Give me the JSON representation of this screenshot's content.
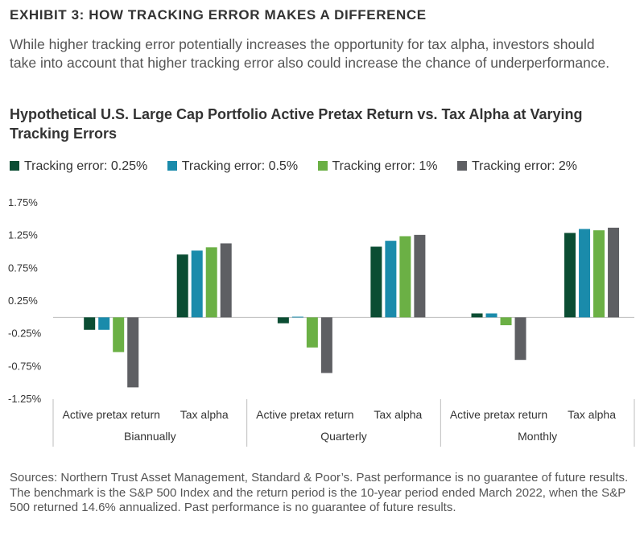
{
  "header": {
    "exhibit": "EXHIBIT 3: HOW TRACKING ERROR MAKES A DIFFERENCE",
    "intro": "While higher tracking error potentially increases the opportunity for tax alpha, investors should take into account that higher tracking error also could increase the chance of underperformance."
  },
  "footer": {
    "sources": "Sources: Northern Trust Asset Management, Standard & Poor’s. Past performance is no guarantee of future results. The benchmark is the S&P 500 Index and the return period is the 10-year period ended March 2022, when the S&P 500 returned 14.6% annualized. Past performance is no guarantee of future results."
  },
  "chart_data": {
    "type": "bar",
    "title": "Hypothetical U.S. Large Cap Portfolio Active Pretax Return vs. Tax Alpha at Varying Tracking Errors",
    "groups": [
      "Biannually",
      "Quarterly",
      "Monthly"
    ],
    "subcategories": [
      "Active pretax return",
      "Tax alpha"
    ],
    "series": [
      {
        "name": "Tracking error: 0.25%",
        "color": "#0b4d33",
        "values": [
          -0.19,
          0.96,
          -0.09,
          1.08,
          0.06,
          1.29
        ]
      },
      {
        "name": "Tracking error: 0.5%",
        "color": "#1a8bab",
        "values": [
          -0.19,
          1.02,
          0.01,
          1.17,
          0.06,
          1.35
        ]
      },
      {
        "name": "Tracking error: 1%",
        "color": "#6bb045",
        "values": [
          -0.53,
          1.07,
          -0.46,
          1.24,
          -0.12,
          1.33
        ]
      },
      {
        "name": "Tracking error: 2%",
        "color": "#5e5f63",
        "values": [
          -1.07,
          1.13,
          -0.85,
          1.26,
          -0.65,
          1.37
        ]
      }
    ],
    "ylim": [
      -1.25,
      1.75
    ],
    "yticks": [
      "1.75%",
      "1.25%",
      "0.75%",
      "0.25%",
      "-0.25%",
      "-0.75%",
      "-1.25%"
    ],
    "ytick_values": [
      1.75,
      1.25,
      0.75,
      0.25,
      -0.25,
      -0.75,
      -1.25
    ],
    "legend_position": "top-left",
    "grid": false
  }
}
